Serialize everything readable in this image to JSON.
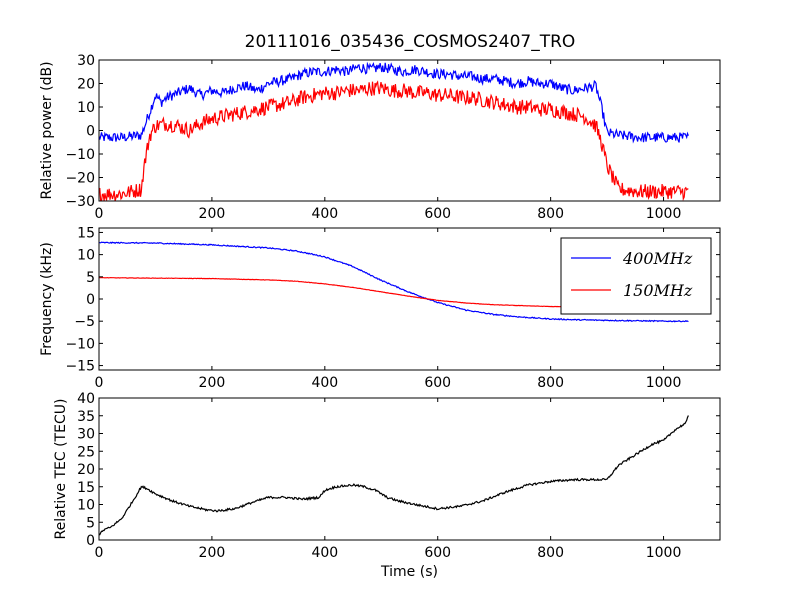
{
  "title": "20111016_035436_COSMOS2407_TRO",
  "chart_data": [
    {
      "type": "line",
      "ylabel": "Relative power (dB)",
      "xlabel": "",
      "xlim": [
        0,
        1100
      ],
      "ylim": [
        -30,
        30
      ],
      "xticks": [
        "0",
        "200",
        "400",
        "600",
        "800",
        "1000"
      ],
      "xtick_values": [
        0,
        200,
        400,
        600,
        800,
        1000
      ],
      "yticks": [
        "−30",
        "−20",
        "−10",
        "0",
        "10",
        "20",
        "30"
      ],
      "ytick_values": [
        -30,
        -20,
        -10,
        0,
        10,
        20,
        30
      ],
      "series": [
        {
          "color": "#0000ff",
          "x": [
            0,
            40,
            75,
            90,
            100,
            110,
            120,
            140,
            160,
            180,
            200,
            220,
            240,
            260,
            280,
            300,
            320,
            340,
            360,
            380,
            400,
            420,
            440,
            460,
            480,
            500,
            520,
            540,
            560,
            580,
            600,
            620,
            640,
            660,
            680,
            700,
            720,
            740,
            760,
            780,
            800,
            820,
            840,
            860,
            880,
            890,
            900,
            920,
            960,
            1000,
            1045
          ],
          "y": [
            -3,
            -3,
            -2,
            8,
            15,
            12,
            14,
            16,
            18,
            15,
            17,
            16,
            18,
            19,
            17,
            20,
            21,
            22,
            24,
            25,
            25,
            26,
            25,
            27,
            26,
            27,
            26,
            25,
            26,
            25,
            24,
            24,
            23,
            23,
            22,
            22,
            21,
            20,
            21,
            20,
            20,
            18,
            17,
            18,
            19,
            10,
            -1,
            -2,
            -3,
            -3,
            -3
          ],
          "noise": 2.2
        },
        {
          "color": "#ff0000",
          "x": [
            0,
            40,
            75,
            80,
            90,
            100,
            120,
            140,
            160,
            180,
            200,
            220,
            240,
            260,
            280,
            300,
            320,
            340,
            360,
            380,
            400,
            420,
            440,
            460,
            480,
            500,
            520,
            540,
            560,
            580,
            600,
            620,
            640,
            660,
            680,
            700,
            720,
            740,
            760,
            780,
            800,
            820,
            840,
            860,
            880,
            890,
            900,
            920,
            960,
            1000,
            1045
          ],
          "y": [
            -27,
            -27,
            -25,
            -15,
            -2,
            2,
            3,
            2,
            0,
            3,
            5,
            6,
            7,
            8,
            9,
            10,
            11,
            12,
            14,
            15,
            16,
            16,
            17,
            17,
            18,
            18,
            17,
            17,
            16,
            16,
            15,
            15,
            14,
            14,
            13,
            12,
            11,
            10,
            10,
            9,
            9,
            8,
            7,
            6,
            2,
            -5,
            -15,
            -25,
            -26,
            -26,
            -26
          ],
          "noise": 3.2
        }
      ]
    },
    {
      "type": "line",
      "ylabel": "Frequency (kHz)",
      "xlabel": "",
      "xlim": [
        0,
        1100
      ],
      "ylim": [
        -16,
        16
      ],
      "xticks": [
        "0",
        "200",
        "400",
        "600",
        "800",
        "1000"
      ],
      "xtick_values": [
        0,
        200,
        400,
        600,
        800,
        1000
      ],
      "yticks": [
        "−15",
        "−10",
        "−5",
        "0",
        "5",
        "10",
        "15"
      ],
      "ytick_values": [
        -15,
        -10,
        -5,
        0,
        5,
        10,
        15
      ],
      "legend_position": "top-right",
      "series": [
        {
          "name": "400MHz",
          "color": "#0000ff",
          "x": [
            0,
            100,
            200,
            300,
            350,
            400,
            450,
            500,
            550,
            600,
            650,
            700,
            750,
            800,
            850,
            900,
            950,
            1000,
            1045
          ],
          "y": [
            12.7,
            12.6,
            12.2,
            11.5,
            10.8,
            9.5,
            7.3,
            4.2,
            1.5,
            -0.8,
            -2.5,
            -3.5,
            -4.1,
            -4.5,
            -4.7,
            -4.8,
            -4.9,
            -5.0,
            -5.0
          ],
          "noise": 0.12
        },
        {
          "name": "150MHz",
          "color": "#ff0000",
          "x": [
            0,
            100,
            200,
            300,
            350,
            400,
            450,
            500,
            550,
            600,
            650,
            700,
            750,
            800,
            850,
            900,
            950,
            1000,
            1045
          ],
          "y": [
            4.8,
            4.7,
            4.6,
            4.3,
            4.0,
            3.4,
            2.6,
            1.6,
            0.6,
            -0.3,
            -0.9,
            -1.3,
            -1.5,
            -1.7,
            -1.8,
            -1.8,
            -1.8,
            -1.8,
            -1.8
          ],
          "noise": 0.04
        }
      ]
    },
    {
      "type": "line",
      "ylabel": "Relative TEC (TECU)",
      "xlabel": "Time (s)",
      "xlim": [
        0,
        1100
      ],
      "ylim": [
        0,
        40
      ],
      "xticks": [
        "0",
        "200",
        "400",
        "600",
        "800",
        "1000"
      ],
      "xtick_values": [
        0,
        200,
        400,
        600,
        800,
        1000
      ],
      "yticks": [
        "0",
        "5",
        "10",
        "15",
        "20",
        "25",
        "30",
        "35",
        "40"
      ],
      "ytick_values": [
        0,
        5,
        10,
        15,
        20,
        25,
        30,
        35,
        40
      ],
      "series": [
        {
          "color": "#000000",
          "x": [
            0,
            10,
            20,
            40,
            60,
            75,
            85,
            100,
            130,
            160,
            190,
            210,
            240,
            270,
            300,
            330,
            360,
            390,
            400,
            420,
            450,
            470,
            490,
            510,
            530,
            560,
            600,
            640,
            680,
            720,
            760,
            800,
            840,
            880,
            900,
            910,
            920,
            940,
            960,
            980,
            1000,
            1020,
            1040,
            1045
          ],
          "y": [
            1.5,
            3,
            3.5,
            6,
            11,
            15,
            14.5,
            13,
            11,
            9.5,
            8.5,
            8.2,
            8.8,
            10.5,
            12,
            12,
            11.5,
            12,
            14,
            15,
            15.5,
            15,
            14,
            12,
            11,
            10,
            8.8,
            9.5,
            11,
            13.5,
            15.5,
            16.5,
            17,
            17,
            17,
            19,
            21,
            23,
            25,
            27,
            28,
            31,
            33,
            35.5
          ],
          "noise": 0.3
        }
      ]
    }
  ]
}
